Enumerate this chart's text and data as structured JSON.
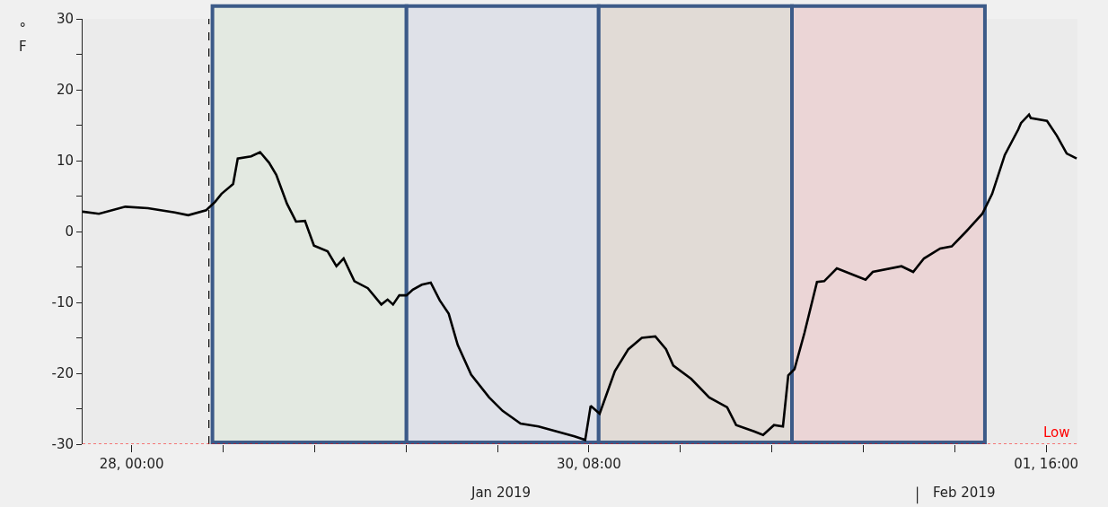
{
  "chart_data": {
    "type": "line",
    "ylabel": "° F",
    "x": [
      "2019-01-27T18:00",
      "2019-01-27T20:00",
      "2019-01-27T23:14",
      "2019-01-28T02:00",
      "2019-01-28T05:17",
      "2019-01-28T06:56",
      "2019-01-28T09:08",
      "2019-01-28T10:14",
      "2019-01-28T11:00",
      "2019-01-28T12:26",
      "2019-01-28T13:00",
      "2019-01-28T14:38",
      "2019-01-28T15:44",
      "2019-01-28T16:50",
      "2019-01-28T17:43",
      "2019-01-28T19:02",
      "2019-01-28T20:08",
      "2019-01-28T21:14",
      "2019-01-28T22:20",
      "2019-01-29T00:00",
      "2019-01-29T01:05",
      "2019-01-29T01:58",
      "2019-01-29T03:17",
      "2019-01-29T04:56",
      "2019-01-29T06:35",
      "2019-01-29T07:21",
      "2019-01-29T08:01",
      "2019-01-29T08:47",
      "2019-01-29T09:40",
      "2019-01-29T10:26",
      "2019-01-29T11:32",
      "2019-01-29T12:38",
      "2019-01-29T13:44",
      "2019-01-29T14:50",
      "2019-01-29T15:56",
      "2019-01-29T17:35",
      "2019-01-29T19:47",
      "2019-01-29T21:26",
      "2019-01-29T23:38",
      "2019-01-30T01:50",
      "2019-01-30T04:02",
      "2019-01-30T06:14",
      "2019-01-30T07:33",
      "2019-01-30T08:13",
      "2019-01-30T09:19",
      "2019-01-30T11:11",
      "2019-01-30T12:50",
      "2019-01-30T14:29",
      "2019-01-30T16:08",
      "2019-01-30T17:27",
      "2019-01-30T18:20",
      "2019-01-30T20:32",
      "2019-01-30T22:44",
      "2019-01-31T00:56",
      "2019-01-31T02:02",
      "2019-01-31T04:14",
      "2019-01-31T05:20",
      "2019-01-31T06:40",
      "2019-01-31T07:46",
      "2019-01-31T08:25",
      "2019-01-31T09:11",
      "2019-01-31T10:24",
      "2019-01-31T11:56",
      "2019-01-31T12:49",
      "2019-01-31T14:22",
      "2019-01-31T16:47",
      "2019-01-31T17:53",
      "2019-01-31T18:46",
      "2019-01-31T22:17",
      "2019-01-31T23:43",
      "2019-02-01T01:02",
      "2019-02-01T03:01",
      "2019-02-01T04:26",
      "2019-02-01T06:12",
      "2019-02-01T08:11",
      "2019-02-01T09:23",
      "2019-02-01T10:56",
      "2019-02-01T12:35",
      "2019-02-01T12:55",
      "2019-02-01T13:54",
      "2019-02-01T14:07",
      "2019-02-01T16:06",
      "2019-02-01T17:19",
      "2019-02-01T18:31",
      "2019-02-01T19:44"
    ],
    "series": [
      {
        "color": "#000000",
        "values": [
          2.8,
          2.5,
          3.5,
          3.3,
          2.7,
          2.3,
          3.0,
          4.2,
          5.3,
          6.7,
          10.3,
          10.6,
          11.2,
          9.7,
          8.0,
          3.9,
          1.4,
          1.5,
          -2.0,
          -2.8,
          -4.9,
          -3.8,
          -7.0,
          -8.0,
          -10.3,
          -9.6,
          -10.3,
          -9.0,
          -9.0,
          -8.2,
          -7.5,
          -7.2,
          -9.7,
          -11.6,
          -16.0,
          -20.2,
          -23.4,
          -25.3,
          -27.1,
          -27.5,
          -28.2,
          -28.9,
          -29.4,
          -24.6,
          -25.7,
          -19.7,
          -16.6,
          -15.0,
          -14.8,
          -16.6,
          -18.9,
          -20.8,
          -23.4,
          -24.8,
          -27.3,
          -28.2,
          -28.7,
          -27.3,
          -27.5,
          -20.3,
          -19.4,
          -14.3,
          -7.1,
          -7.0,
          -5.2,
          -6.3,
          -6.8,
          -5.7,
          -4.9,
          -5.7,
          -3.8,
          -2.4,
          -2.1,
          0.0,
          2.5,
          5.3,
          10.8,
          14.4,
          15.3,
          16.5,
          16.0,
          15.6,
          13.5,
          11.0,
          10.3
        ]
      }
    ],
    "xlim": [
      "2019-01-27T18:00",
      "2019-02-01T19:50"
    ],
    "xticks": [
      {
        "value": "2019-01-28T00:00",
        "label": "28, 00:00"
      },
      {
        "value": "2019-01-28T11:12",
        "label": null
      },
      {
        "value": "2019-01-28T22:24",
        "label": null
      },
      {
        "value": "2019-01-29T09:36",
        "label": null
      },
      {
        "value": "2019-01-29T20:48",
        "label": null
      },
      {
        "value": "2019-01-30T08:00",
        "label": "30, 08:00"
      },
      {
        "value": "2019-01-30T19:12",
        "label": null
      },
      {
        "value": "2019-01-31T06:24",
        "label": null
      },
      {
        "value": "2019-01-31T17:36",
        "label": null
      },
      {
        "value": "2019-02-01T04:48",
        "label": null
      },
      {
        "value": "2019-02-01T16:00",
        "label": "01, 16:00"
      }
    ],
    "ylim": [
      -30,
      30
    ],
    "yticks": [
      -30,
      {
        "value": -25,
        "label": null
      },
      -20,
      {
        "value": -15,
        "label": null
      },
      -10,
      {
        "value": -5,
        "label": null
      },
      0,
      {
        "value": 5,
        "label": null
      },
      10,
      {
        "value": 15,
        "label": null
      },
      20,
      {
        "value": 25,
        "label": null
      },
      30
    ],
    "bands": [
      {
        "axis": "x",
        "from": "2019-01-28T09:54",
        "to": "2019-01-29T09:40",
        "color": "#e3e9e1"
      },
      {
        "axis": "x",
        "from": "2019-01-29T09:40",
        "to": "2019-01-30T09:12",
        "color": "#dfe1e8"
      },
      {
        "axis": "x",
        "from": "2019-01-30T09:12",
        "to": "2019-01-31T08:52",
        "color": "#e1dbd6"
      },
      {
        "axis": "x",
        "from": "2019-01-31T08:52",
        "to": "2019-02-01T08:30",
        "color": "#ebd5d6"
      }
    ],
    "ref_lines": [
      {
        "axis": "x",
        "value": "2019-01-28T09:28",
        "color": "#000000",
        "line_style": "dashed"
      },
      {
        "axis": "y",
        "value": -30,
        "label": "Low",
        "color": "#ff0000",
        "line_style": "dotted"
      }
    ],
    "annotations": [
      "Jan 2019",
      "Feb 2019"
    ],
    "grid": false,
    "marker": "none",
    "line_style": "solid"
  }
}
